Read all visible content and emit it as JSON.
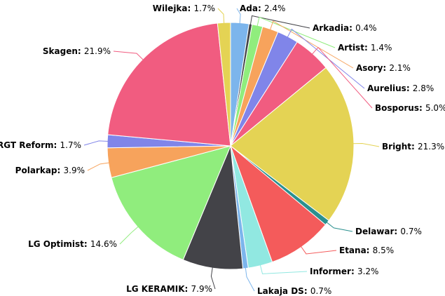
{
  "chart_data": {
    "type": "pie",
    "categories": [
      "Ada",
      "Arkadia",
      "Artist",
      "Asory",
      "Aurelius",
      "Bosporus",
      "Bright",
      "Delawar",
      "Etana",
      "Informer",
      "Lakaja DS",
      "LG KERAMIK",
      "LG Optimist",
      "Polarkap",
      "RGT Reform",
      "Skagen",
      "Wilejka"
    ],
    "values": [
      2.4,
      0.4,
      1.4,
      2.1,
      2.8,
      5.0,
      21.3,
      0.7,
      8.5,
      3.2,
      0.7,
      7.9,
      14.6,
      3.9,
      1.7,
      21.9,
      1.7
    ],
    "value_labels": [
      "2.4%",
      "0.4%",
      "1.4%",
      "2.1%",
      "2.8%",
      "5.0%",
      "21.3%",
      "0.7%",
      "8.5%",
      "3.2%",
      "0.7%",
      "7.9%",
      "14.6%",
      "3.9%",
      "1.7%",
      "21.9%",
      "1.7%"
    ],
    "colors": [
      "#7cb5ec",
      "#434348",
      "#90ed7d",
      "#f7a35c",
      "#8085e9",
      "#f15c80",
      "#e4d354",
      "#2b908f",
      "#f45b5b",
      "#91e8e1",
      "#7cb5ec",
      "#434348",
      "#90ed7d",
      "#f7a35c",
      "#8085e9",
      "#f15c80",
      "#e4d354"
    ]
  }
}
